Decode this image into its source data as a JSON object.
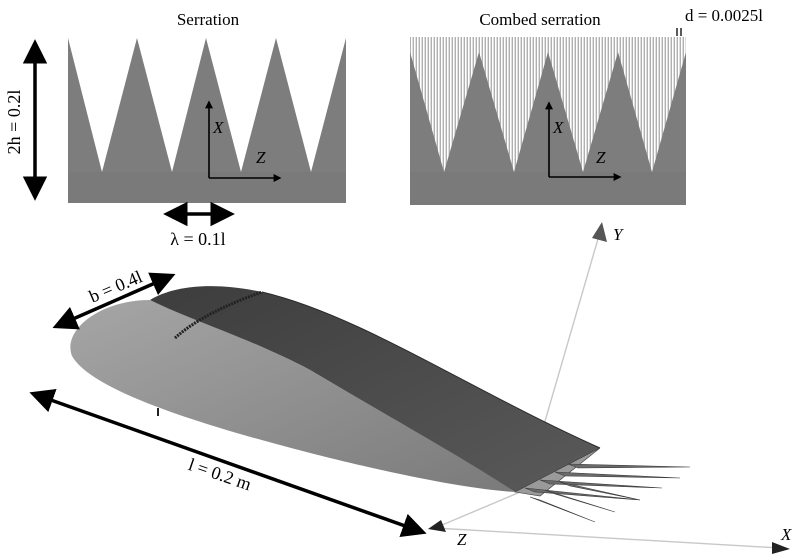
{
  "panels": {
    "serration_title": "Serration",
    "combed_title": "Combed serration"
  },
  "dimensions": {
    "height": "2h = 0.2l",
    "wavelength": "λ = 0.1l",
    "comb_gap": "d = 0.0025l",
    "span": "b = 0.4l",
    "chord": "l = 0.2 m"
  },
  "axes_inset": {
    "x": "X",
    "z": "Z"
  },
  "axes_3d": {
    "x": "X",
    "y": "Y",
    "z": "Z"
  },
  "colors": {
    "panel_gray": "#7d7d7d",
    "airfoil_side": "#8c8c8c",
    "airfoil_top": "#4a4a4a",
    "axis_gray": "#c8c8c8"
  }
}
